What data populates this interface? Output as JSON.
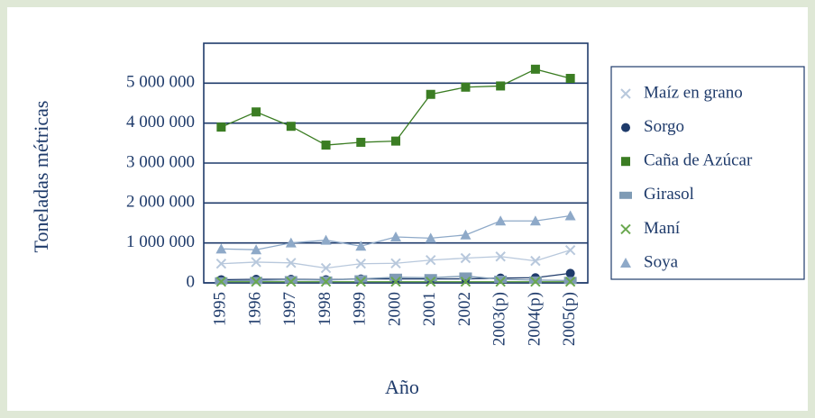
{
  "chart_data": {
    "type": "line",
    "x_label": "Año",
    "y_label": "Toneladas métricas",
    "categories": [
      "1995",
      "1996",
      "1997",
      "1998",
      "1999",
      "2000",
      "2001",
      "2002",
      "2003(p)",
      "2004(p)",
      "2005(p)"
    ],
    "series": [
      {
        "name": "Maíz en grano",
        "color": "#b8c8dc",
        "marker": "x",
        "values": [
          480000,
          520000,
          500000,
          370000,
          480000,
          490000,
          570000,
          620000,
          660000,
          550000,
          820000
        ]
      },
      {
        "name": "Sorgo",
        "color": "#1f3b6b",
        "marker": "circle",
        "values": [
          80000,
          90000,
          90000,
          80000,
          100000,
          100000,
          100000,
          100000,
          120000,
          130000,
          240000
        ]
      },
      {
        "name": "Caña de Azúcar",
        "color": "#3b7d23",
        "marker": "square",
        "values": [
          3900000,
          4280000,
          3920000,
          3450000,
          3520000,
          3550000,
          4720000,
          4900000,
          4930000,
          5350000,
          5120000
        ]
      },
      {
        "name": "Girasol",
        "color": "#7f9bb5",
        "marker": "rect",
        "values": [
          50000,
          60000,
          80000,
          70000,
          100000,
          140000,
          130000,
          170000,
          90000,
          70000,
          60000
        ]
      },
      {
        "name": "Maní",
        "color": "#6aa84f",
        "marker": "x",
        "values": [
          30000,
          30000,
          30000,
          30000,
          30000,
          30000,
          30000,
          30000,
          30000,
          30000,
          30000
        ]
      },
      {
        "name": "Soya",
        "color": "#8ea9c8",
        "marker": "triangle",
        "values": [
          850000,
          830000,
          1000000,
          1070000,
          920000,
          1150000,
          1120000,
          1200000,
          1550000,
          1550000,
          1680000
        ]
      }
    ],
    "ylim": [
      0,
      6000000
    ],
    "yticks": [
      0,
      {
        "value": 1000000,
        "label": "1 000 000"
      },
      {
        "value": 2000000,
        "label": "2 000 000"
      },
      {
        "value": 3000000,
        "label": "3 000 000"
      },
      {
        "value": 4000000,
        "label": "4 000 000"
      },
      {
        "value": 5000000,
        "label": "5 000 000"
      }
    ],
    "grid": true,
    "legend": "right"
  }
}
